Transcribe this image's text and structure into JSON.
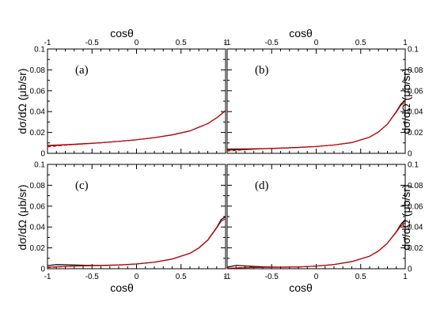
{
  "x_title": "cosθ",
  "y_title": "dσ/dΩ   (μb/sr)",
  "chart_data": [
    {
      "type": "line",
      "panel": "(a)",
      "xlim": [
        -1,
        1
      ],
      "ylim": [
        0,
        0.1
      ],
      "x_ticks": [
        "-1",
        "-0.5",
        "0",
        "0.5",
        "1"
      ],
      "y_ticks": [
        "0",
        "0.02",
        "0.04",
        "0.06",
        "0.08",
        "0.1"
      ],
      "series": [
        {
          "color": "#000000",
          "style": "solid",
          "x": [
            -1,
            -0.8,
            -0.6,
            -0.4,
            -0.2,
            0,
            0.2,
            0.4,
            0.6,
            0.8,
            0.9,
            1.0
          ],
          "y": [
            0.0075,
            0.0083,
            0.0092,
            0.0102,
            0.0115,
            0.013,
            0.015,
            0.0177,
            0.0215,
            0.0285,
            0.034,
            0.041
          ]
        },
        {
          "color": "#cc0000",
          "style": "solid",
          "x": [
            -1,
            -0.8,
            -0.6,
            -0.4,
            -0.2,
            0,
            0.2,
            0.4,
            0.6,
            0.8,
            0.9,
            1.0
          ],
          "y": [
            0.007,
            0.008,
            0.009,
            0.0101,
            0.0114,
            0.013,
            0.015,
            0.0177,
            0.0215,
            0.0285,
            0.034,
            0.0408
          ]
        },
        {
          "color": "#cc0000",
          "style": "dashed",
          "x": [
            -1,
            -0.9,
            -0.8,
            -0.7,
            -0.6
          ],
          "y": [
            0.0062,
            0.007,
            0.0078,
            0.0085,
            0.009
          ]
        }
      ]
    },
    {
      "type": "line",
      "panel": "(b)",
      "xlim": [
        -1,
        1
      ],
      "ylim": [
        0,
        0.1
      ],
      "x_ticks": [
        "-1",
        "-0.5",
        "0",
        "0.5",
        "1"
      ],
      "y_ticks": [
        "0",
        "0.02",
        "0.04",
        "0.06",
        "0.08",
        "0.1"
      ],
      "series": [
        {
          "color": "#000000",
          "style": "solid",
          "x": [
            -1,
            -0.8,
            -0.6,
            -0.4,
            -0.2,
            0,
            0.2,
            0.4,
            0.6,
            0.7,
            0.8,
            0.9,
            0.95,
            1.0
          ],
          "y": [
            0.004,
            0.0042,
            0.0045,
            0.005,
            0.0057,
            0.0066,
            0.008,
            0.0103,
            0.0155,
            0.0205,
            0.028,
            0.04,
            0.047,
            0.051
          ]
        },
        {
          "color": "#cc0000",
          "style": "solid",
          "x": [
            -1,
            -0.8,
            -0.6,
            -0.4,
            -0.2,
            0,
            0.2,
            0.4,
            0.6,
            0.7,
            0.8,
            0.9,
            0.95,
            1.0
          ],
          "y": [
            0.003,
            0.0036,
            0.0043,
            0.0049,
            0.0056,
            0.0065,
            0.008,
            0.0103,
            0.0155,
            0.0205,
            0.028,
            0.0395,
            0.046,
            0.049
          ]
        },
        {
          "color": "#cc0000",
          "style": "dashed",
          "x": [
            -1,
            -0.9,
            -0.8,
            -0.7
          ],
          "y": [
            0.0022,
            0.0028,
            0.0034,
            0.004
          ]
        }
      ]
    },
    {
      "type": "line",
      "panel": "(c)",
      "xlim": [
        -1,
        1
      ],
      "ylim": [
        0,
        0.1
      ],
      "x_ticks": [
        "-1",
        "-0.5",
        "0",
        "0.5",
        "1"
      ],
      "y_ticks": [
        "0",
        "0.02",
        "0.04",
        "0.06",
        "0.08",
        "0.1"
      ],
      "series": [
        {
          "color": "#000000",
          "style": "solid",
          "x": [
            -1,
            -0.9,
            -0.8,
            -0.6,
            -0.4,
            -0.2,
            0,
            0.2,
            0.4,
            0.6,
            0.7,
            0.8,
            0.9,
            0.95,
            1.0
          ],
          "y": [
            0.003,
            0.004,
            0.0038,
            0.0033,
            0.0032,
            0.0036,
            0.0046,
            0.0063,
            0.0093,
            0.0148,
            0.02,
            0.0275,
            0.0395,
            0.047,
            0.05
          ]
        },
        {
          "color": "#cc0000",
          "style": "solid",
          "x": [
            -1,
            -0.8,
            -0.6,
            -0.4,
            -0.2,
            0,
            0.2,
            0.4,
            0.6,
            0.7,
            0.8,
            0.9,
            0.95,
            1.0
          ],
          "y": [
            0.0015,
            0.0022,
            0.0027,
            0.003,
            0.0035,
            0.0045,
            0.0062,
            0.0092,
            0.0147,
            0.0198,
            0.0272,
            0.039,
            0.0455,
            0.048
          ]
        },
        {
          "color": "#cc0000",
          "style": "dashed",
          "x": [
            -1,
            -0.9,
            -0.8,
            -0.7
          ],
          "y": [
            0.001,
            0.0016,
            0.0021,
            0.0025
          ]
        }
      ]
    },
    {
      "type": "line",
      "panel": "(d)",
      "xlim": [
        -1,
        1
      ],
      "ylim": [
        0,
        0.1
      ],
      "x_ticks": [
        "-1",
        "-0.5",
        "0",
        "0.5",
        "1"
      ],
      "y_ticks": [
        "0",
        "0.02",
        "0.04",
        "0.06",
        "0.08",
        "0.1"
      ],
      "series": [
        {
          "color": "#000000",
          "style": "solid",
          "x": [
            -1,
            -0.9,
            -0.8,
            -0.6,
            -0.4,
            -0.2,
            0,
            0.2,
            0.4,
            0.6,
            0.7,
            0.8,
            0.9,
            0.95,
            1.0
          ],
          "y": [
            0.0015,
            0.0032,
            0.0027,
            0.0018,
            0.0015,
            0.0017,
            0.0025,
            0.004,
            0.0068,
            0.012,
            0.017,
            0.0245,
            0.0355,
            0.0425,
            0.047
          ]
        },
        {
          "color": "#cc0000",
          "style": "solid",
          "x": [
            -1,
            -0.8,
            -0.6,
            -0.4,
            -0.2,
            0,
            0.2,
            0.4,
            0.6,
            0.7,
            0.8,
            0.9,
            0.95,
            1.0
          ],
          "y": [
            0.0005,
            0.001,
            0.0013,
            0.0014,
            0.0017,
            0.0025,
            0.004,
            0.0068,
            0.012,
            0.017,
            0.0245,
            0.035,
            0.041,
            0.044
          ]
        },
        {
          "color": "#cc0000",
          "style": "dashed",
          "x": [
            -1,
            -0.9,
            -0.8,
            -0.7
          ],
          "y": [
            0.0003,
            0.0008,
            0.0012,
            0.0015
          ]
        }
      ]
    }
  ]
}
